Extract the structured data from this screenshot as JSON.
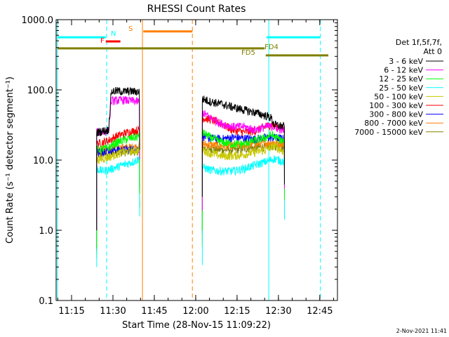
{
  "chart_data": {
    "type": "line",
    "title": "RHESSI Count Rates",
    "xlabel": "Start Time (28-Nov-15 11:09:22)",
    "ylabel": "Count Rate (s⁻¹ detector segment⁻¹)",
    "yscale": "log",
    "ylim": [
      0.1,
      1000
    ],
    "xlim_minutes": [
      0,
      102
    ],
    "x_start": "11:09:22",
    "x_ticks": [
      {
        "label": "11:15",
        "minute": 5.6
      },
      {
        "label": "11:30",
        "minute": 20.6
      },
      {
        "label": "11:45",
        "minute": 35.6
      },
      {
        "label": "12:00",
        "minute": 50.6
      },
      {
        "label": "12:15",
        "minute": 65.6
      },
      {
        "label": "12:30",
        "minute": 80.6
      },
      {
        "label": "12:45",
        "minute": 95.6
      }
    ],
    "y_ticks": [
      {
        "label": "0.1",
        "value": 0.1
      },
      {
        "label": "1.0",
        "value": 1
      },
      {
        "label": "10.0",
        "value": 10
      },
      {
        "label": "100.0",
        "value": 100
      },
      {
        "label": "1000.0",
        "value": 1000
      }
    ],
    "legend_header": [
      "Det 1f,5f,7f,",
      "Att 0"
    ],
    "series": [
      {
        "name": "3 - 6 keV",
        "color": "#000000",
        "segment1": [
          [
            14.7,
            25
          ],
          [
            19.0,
            27
          ],
          [
            20.0,
            95
          ],
          [
            22.0,
            97
          ],
          [
            24.5,
            95
          ],
          [
            26.5,
            96
          ],
          [
            30.3,
            94
          ]
        ],
        "segment2": [
          [
            53.0,
            75
          ],
          [
            56.0,
            68
          ],
          [
            60.0,
            63
          ],
          [
            64.0,
            57
          ],
          [
            68.0,
            52
          ],
          [
            72.0,
            48
          ],
          [
            76.0,
            43
          ],
          [
            78.0,
            40
          ],
          [
            79.0,
            32
          ],
          [
            82.8,
            30
          ]
        ]
      },
      {
        "name": "6 - 12 keV",
        "color": "#ff00ff",
        "segment1": [
          [
            14.7,
            25
          ],
          [
            19.0,
            26
          ],
          [
            20.0,
            70
          ],
          [
            24.5,
            72
          ],
          [
            30.3,
            68
          ]
        ],
        "segment2": [
          [
            53.0,
            48
          ],
          [
            56.0,
            40
          ],
          [
            60.0,
            33
          ],
          [
            64.0,
            30
          ],
          [
            68.0,
            30
          ],
          [
            72.0,
            27
          ],
          [
            76.0,
            30
          ],
          [
            79.0,
            30
          ],
          [
            82.8,
            26
          ]
        ]
      },
      {
        "name": "12 - 25 keV",
        "color": "#00ff00",
        "segment1": [
          [
            14.7,
            14
          ],
          [
            19.0,
            15
          ],
          [
            22.0,
            18
          ],
          [
            26.0,
            20
          ],
          [
            30.3,
            22
          ]
        ],
        "segment2": [
          [
            53.0,
            25
          ],
          [
            56.0,
            21
          ],
          [
            60.0,
            18
          ],
          [
            64.0,
            17
          ],
          [
            68.0,
            17
          ],
          [
            72.0,
            19
          ],
          [
            76.0,
            21
          ],
          [
            78.0,
            23
          ],
          [
            82.8,
            18
          ]
        ]
      },
      {
        "name": "25 - 50 keV",
        "color": "#00ffff",
        "segment1": [
          [
            14.7,
            7.5
          ],
          [
            17.0,
            7.0
          ],
          [
            20.0,
            7.5
          ],
          [
            24.0,
            8.5
          ],
          [
            28.0,
            9.5
          ],
          [
            30.3,
            10.5
          ]
        ],
        "segment2": [
          [
            53.0,
            8.0
          ],
          [
            56.0,
            7.2
          ],
          [
            60.0,
            7.0
          ],
          [
            64.0,
            7.0
          ],
          [
            68.0,
            7.5
          ],
          [
            72.0,
            8.5
          ],
          [
            76.0,
            9.5
          ],
          [
            79.0,
            10.5
          ],
          [
            82.8,
            9.5
          ]
        ]
      },
      {
        "name": "50 - 100 keV",
        "color": "#c8c800",
        "segment1": [
          [
            14.7,
            10
          ],
          [
            19.0,
            11
          ],
          [
            24.0,
            13
          ],
          [
            30.3,
            14
          ]
        ],
        "segment2": [
          [
            53.0,
            14
          ],
          [
            56.0,
            12.5
          ],
          [
            60.0,
            11.5
          ],
          [
            64.0,
            11.5
          ],
          [
            68.0,
            12
          ],
          [
            72.0,
            13
          ],
          [
            76.0,
            14
          ],
          [
            79.0,
            16
          ],
          [
            82.8,
            13
          ]
        ]
      },
      {
        "name": "100 - 300 keV",
        "color": "#ff0000",
        "segment1": [
          [
            14.7,
            17
          ],
          [
            19.0,
            19
          ],
          [
            22.0,
            22
          ],
          [
            26.0,
            25
          ],
          [
            30.3,
            27
          ]
        ],
        "segment2": [
          [
            53.0,
            40
          ],
          [
            56.0,
            38
          ],
          [
            60.0,
            33
          ],
          [
            64.0,
            27
          ],
          [
            68.0,
            25
          ],
          [
            72.0,
            26
          ],
          [
            76.0,
            30
          ],
          [
            78.0,
            32
          ],
          [
            82.8,
            28
          ]
        ]
      },
      {
        "name": "300 - 800 keV",
        "color": "#0000ff",
        "segment1": [
          [
            14.7,
            13
          ],
          [
            19.0,
            14
          ],
          [
            24.0,
            14
          ],
          [
            30.3,
            14.5
          ]
        ],
        "segment2": [
          [
            53.0,
            22
          ],
          [
            56.0,
            20.5
          ],
          [
            60.0,
            20
          ],
          [
            64.0,
            21
          ],
          [
            68.0,
            20.5
          ],
          [
            72.0,
            20
          ],
          [
            76.0,
            21
          ],
          [
            79.0,
            21
          ],
          [
            82.8,
            20
          ]
        ]
      },
      {
        "name": "800 - 7000 keV",
        "color": "#ff8000",
        "segment1": [
          [
            14.7,
            14
          ],
          [
            19.0,
            14.5
          ],
          [
            24.0,
            15
          ],
          [
            30.3,
            15.5
          ]
        ],
        "segment2": [
          [
            53.0,
            17
          ],
          [
            56.0,
            16.5
          ],
          [
            60.0,
            16
          ],
          [
            64.0,
            16
          ],
          [
            68.0,
            16.5
          ],
          [
            72.0,
            17
          ],
          [
            76.0,
            17.5
          ],
          [
            79.0,
            18
          ],
          [
            82.8,
            17
          ]
        ]
      },
      {
        "name": "7000 - 15000 keV",
        "color": "#808000",
        "segment1": [
          [
            14.7,
            12
          ],
          [
            19.0,
            12.5
          ],
          [
            24.0,
            13
          ],
          [
            30.3,
            13.5
          ]
        ],
        "segment2": [
          [
            53.0,
            15
          ],
          [
            56.0,
            14.5
          ],
          [
            60.0,
            14
          ],
          [
            64.0,
            14
          ],
          [
            68.0,
            14.5
          ],
          [
            72.0,
            15
          ],
          [
            76.0,
            15.5
          ],
          [
            79.0,
            16
          ],
          [
            82.8,
            15
          ]
        ]
      }
    ],
    "data_gap_minutes": [
      30.3,
      53.0
    ],
    "flag_bars": [
      {
        "label": "N",
        "color": "#00ffff",
        "level": 560,
        "intervals": [
          [
            0.5,
            18.0
          ],
          [
            76.3,
            95.8
          ]
        ]
      },
      {
        "label": "F",
        "color": "#ff0000",
        "level": 490,
        "intervals": [
          [
            18.0,
            23.3
          ]
        ]
      },
      {
        "label": "S",
        "color": "#ff8000",
        "level": 680,
        "intervals": [
          [
            31.6,
            49.4
          ]
        ]
      },
      {
        "label": "FD4",
        "color": "#808000",
        "level": 390,
        "intervals": [
          [
            0.5,
            75.6
          ]
        ]
      },
      {
        "label": "FD5",
        "color": "#808000",
        "level": 310,
        "intervals": [
          [
            76.0,
            98.7
          ]
        ]
      }
    ],
    "vertical_lines": [
      {
        "minute": 0.5,
        "color": "#00ffff",
        "style": "solid"
      },
      {
        "minute": 18.3,
        "color": "#00ffff",
        "style": "dashed"
      },
      {
        "minute": 31.3,
        "color": "#ff8000",
        "style": "solid"
      },
      {
        "minute": 49.4,
        "color": "#ff8000",
        "style": "dashed"
      },
      {
        "minute": 77.1,
        "color": "#00ffff",
        "style": "solid"
      },
      {
        "minute": 95.8,
        "color": "#00ffff",
        "style": "dashed"
      }
    ],
    "timestamp": "2-Nov-2021 11:41"
  }
}
